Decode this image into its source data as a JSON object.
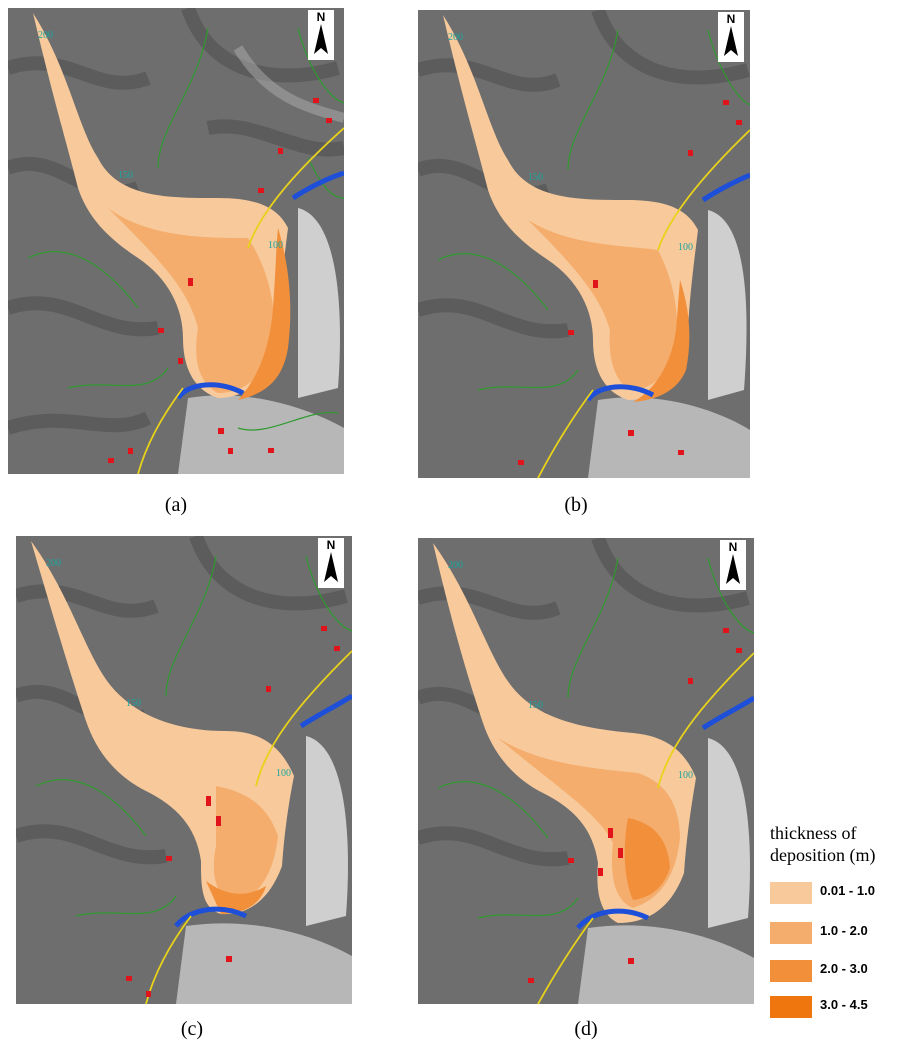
{
  "panels": [
    {
      "id": "a",
      "caption": "(a)"
    },
    {
      "id": "b",
      "caption": "(b)"
    },
    {
      "id": "c",
      "caption": "(c)"
    },
    {
      "id": "d",
      "caption": "(d)"
    }
  ],
  "north_label": "N",
  "contour_labels": [
    "200",
    "150",
    "100"
  ],
  "legend": {
    "title_line1": "thickness of",
    "title_line2": "deposition (m)",
    "classes": [
      {
        "label": "0.01 - 1.0",
        "color": "#f7c99b"
      },
      {
        "label": "1.0 - 2.0",
        "color": "#f4ad6c"
      },
      {
        "label": "2.0 - 3.0",
        "color": "#f28f3b"
      },
      {
        "label": "3.0 - 4.5",
        "color": "#ef760f"
      }
    ]
  },
  "colors": {
    "river": "#1e4fd8",
    "contour": "#2f9a2f",
    "contour_label": "#1aa6a0",
    "road": "#e8d21a",
    "buildings": "#e0141a",
    "terrain": "#6b6b6b"
  }
}
